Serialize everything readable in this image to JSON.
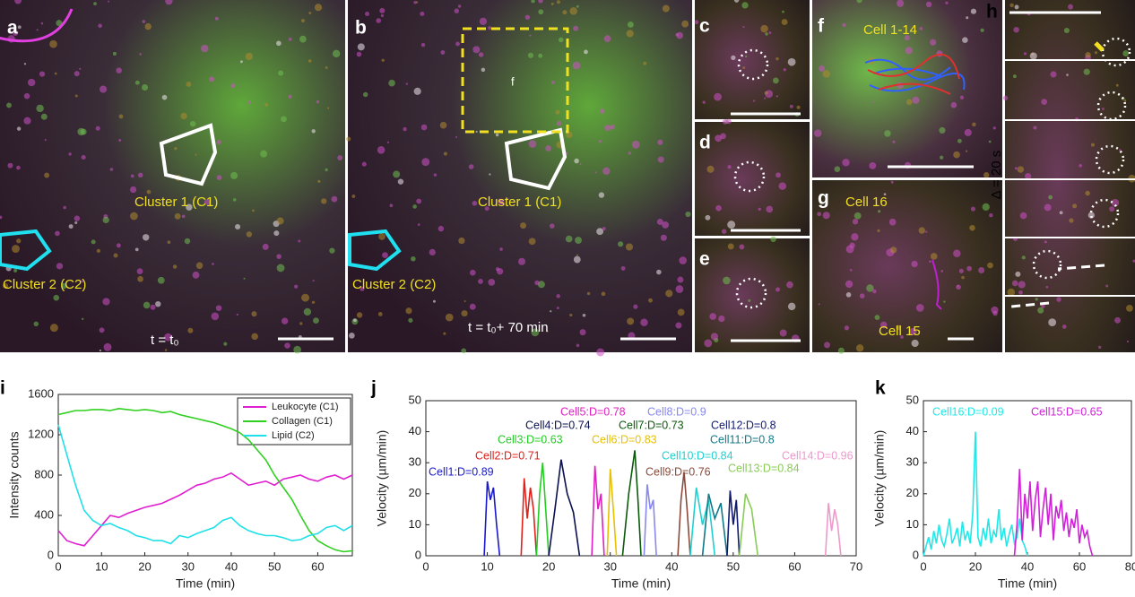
{
  "figure": {
    "panels": [
      {
        "letter": "a"
      },
      {
        "letter": "b"
      },
      {
        "letter": "c"
      },
      {
        "letter": "d"
      },
      {
        "letter": "e"
      },
      {
        "letter": "f"
      },
      {
        "letter": "g"
      },
      {
        "letter": "h"
      }
    ],
    "annotations": [
      "Cluster 1 (C1)",
      "Cluster 2 (C2)",
      "t = t₀",
      "Cluster 1 (C1)",
      "Cluster 2 (C2)",
      "t = t₀+ 70 min",
      "f",
      "Cell 1-14",
      "Cell 16",
      "Cell 15",
      "Δ = 20 s"
    ]
  },
  "chart_data": [
    {
      "type": "line",
      "panel": "i",
      "xlabel": "Time (min)",
      "ylabel": "Intensity counts",
      "xlim": [
        0,
        68
      ],
      "xticks": [
        0,
        10,
        20,
        30,
        40,
        50,
        60
      ],
      "ylim": [
        0,
        1600
      ],
      "yticks": [
        0,
        400,
        800,
        1200,
        1600
      ],
      "legend": "upper right",
      "x": [
        0,
        2,
        4,
        6,
        8,
        10,
        12,
        14,
        16,
        18,
        20,
        22,
        24,
        26,
        28,
        30,
        32,
        34,
        36,
        38,
        40,
        42,
        44,
        46,
        48,
        50,
        52,
        54,
        56,
        58,
        60,
        62,
        64,
        66,
        68
      ],
      "series": [
        {
          "name": "Leukocyte (C1)",
          "color": "#e020d0",
          "values": [
            250,
            150,
            120,
            100,
            200,
            300,
            400,
            380,
            420,
            450,
            480,
            500,
            520,
            560,
            600,
            650,
            700,
            720,
            760,
            780,
            820,
            760,
            700,
            720,
            740,
            700,
            760,
            780,
            800,
            760,
            740,
            780,
            800,
            760,
            800
          ]
        },
        {
          "name": "Collagen (C1)",
          "color": "#30d020",
          "values": [
            1400,
            1420,
            1440,
            1440,
            1450,
            1450,
            1440,
            1460,
            1450,
            1440,
            1450,
            1440,
            1420,
            1430,
            1400,
            1380,
            1360,
            1340,
            1320,
            1290,
            1260,
            1220,
            1150,
            1050,
            950,
            800,
            680,
            560,
            400,
            250,
            150,
            100,
            60,
            40,
            50
          ]
        },
        {
          "name": "Lipid (C2)",
          "color": "#20e0e8",
          "values": [
            1300,
            1000,
            700,
            450,
            350,
            300,
            320,
            280,
            250,
            200,
            180,
            150,
            150,
            120,
            200,
            180,
            220,
            250,
            280,
            350,
            380,
            300,
            250,
            220,
            200,
            200,
            180,
            150,
            160,
            200,
            220,
            280,
            300,
            250,
            300
          ]
        }
      ]
    },
    {
      "type": "line",
      "panel": "j",
      "xlabel": "Time (min)",
      "ylabel": "Velocity (µm/min)",
      "xlim": [
        0,
        70
      ],
      "xticks": [
        0,
        10,
        20,
        30,
        40,
        50,
        60,
        70
      ],
      "ylim": [
        0,
        50
      ],
      "yticks": [
        0,
        10,
        20,
        30,
        40,
        50
      ],
      "series": [
        {
          "name": "Cell1:D=0.89",
          "color": "#1a1acc",
          "x": [
            9.5,
            10,
            10.5,
            11,
            11.5,
            12
          ],
          "values": [
            0,
            24,
            18,
            22,
            10,
            0
          ]
        },
        {
          "name": "Cell2:D=0.71",
          "color": "#e0201a",
          "x": [
            15.5,
            16,
            16.5,
            17,
            17.5,
            18
          ],
          "values": [
            0,
            25,
            12,
            22,
            15,
            0
          ]
        },
        {
          "name": "Cell3:D=0.63",
          "color": "#22cc22",
          "x": [
            18,
            18.5,
            19,
            19.5,
            20
          ],
          "values": [
            0,
            20,
            30,
            15,
            0
          ]
        },
        {
          "name": "Cell4:D=0.74",
          "color": "#0a1050",
          "x": [
            20,
            21,
            22,
            23,
            24,
            25
          ],
          "values": [
            0,
            15,
            31,
            20,
            14,
            0
          ]
        },
        {
          "name": "Cell5:D=0.78",
          "color": "#e020c0",
          "x": [
            27,
            27.5,
            28,
            28.5,
            29
          ],
          "values": [
            0,
            29,
            15,
            20,
            0
          ]
        },
        {
          "name": "Cell6:D=0.83",
          "color": "#e8c000",
          "x": [
            29.5,
            30,
            30.5,
            31
          ],
          "values": [
            0,
            28,
            15,
            0
          ]
        },
        {
          "name": "Cell7:D=0.73",
          "color": "#0a5a0a",
          "x": [
            32,
            33,
            34,
            34.5,
            35
          ],
          "values": [
            0,
            20,
            34,
            18,
            0
          ]
        },
        {
          "name": "Cell8:D=0.9",
          "color": "#8888ee",
          "x": [
            35.5,
            36,
            36.5,
            37,
            37.5
          ],
          "values": [
            0,
            23,
            15,
            18,
            0
          ]
        },
        {
          "name": "Cell9:D=0.76",
          "color": "#8b4a3a",
          "x": [
            41,
            41.5,
            42,
            42.5,
            43
          ],
          "values": [
            0,
            18,
            27,
            15,
            0
          ]
        },
        {
          "name": "Cell10:D=0.84",
          "color": "#20d0d0",
          "x": [
            43,
            44,
            45,
            46,
            47
          ],
          "values": [
            0,
            22,
            10,
            18,
            0
          ]
        },
        {
          "name": "Cell11:D=0.8",
          "color": "#107a8a",
          "x": [
            45,
            46,
            47,
            48,
            49
          ],
          "values": [
            0,
            20,
            12,
            17,
            0
          ]
        },
        {
          "name": "Cell12:D=0.8",
          "color": "#101a70",
          "x": [
            49,
            49.5,
            50,
            50.5,
            51
          ],
          "values": [
            0,
            21,
            10,
            18,
            0
          ]
        },
        {
          "name": "Cell13:D=0.84",
          "color": "#88cc55",
          "x": [
            51,
            52,
            53,
            54
          ],
          "values": [
            0,
            20,
            15,
            0
          ]
        },
        {
          "name": "Cell14:D=0.96",
          "color": "#ee99cc",
          "x": [
            65,
            65.5,
            66,
            66.5,
            67,
            67.5
          ],
          "values": [
            0,
            17,
            8,
            15,
            10,
            0
          ]
        }
      ]
    },
    {
      "type": "line",
      "panel": "k",
      "xlabel": "Time (min)",
      "ylabel": "Velocity (µm/min)",
      "xlim": [
        0,
        80
      ],
      "xticks": [
        0,
        20,
        40,
        60,
        80
      ],
      "ylim": [
        0,
        50
      ],
      "yticks": [
        0,
        10,
        20,
        30,
        40,
        50
      ],
      "series": [
        {
          "name": "Cell16:D=0.09",
          "color": "#20e8e8",
          "x": [
            0,
            1,
            2,
            3,
            4,
            5,
            6,
            7,
            8,
            9,
            10,
            11,
            12,
            13,
            14,
            15,
            16,
            17,
            18,
            19,
            20,
            21,
            22,
            23,
            24,
            25,
            26,
            27,
            28,
            29,
            30,
            31,
            32,
            33,
            34,
            35,
            36,
            37,
            38,
            39,
            40
          ],
          "values": [
            0,
            3,
            6,
            2,
            8,
            4,
            10,
            5,
            3,
            7,
            12,
            4,
            6,
            9,
            3,
            11,
            5,
            8,
            4,
            14,
            40,
            6,
            3,
            9,
            5,
            12,
            4,
            8,
            6,
            15,
            5,
            9,
            3,
            7,
            10,
            4,
            6,
            12,
            5,
            3,
            0
          ]
        },
        {
          "name": "Cell15:D=0.65",
          "color": "#d020d8",
          "x": [
            35,
            36,
            37,
            38,
            39,
            40,
            41,
            42,
            43,
            44,
            45,
            46,
            47,
            48,
            49,
            50,
            51,
            52,
            53,
            54,
            55,
            56,
            57,
            58,
            59,
            60,
            61,
            62,
            63,
            64,
            65
          ],
          "values": [
            0,
            10,
            28,
            5,
            20,
            12,
            24,
            8,
            18,
            24,
            6,
            15,
            22,
            10,
            20,
            5,
            16,
            12,
            18,
            8,
            14,
            6,
            12,
            9,
            15,
            4,
            10,
            6,
            8,
            3,
            0
          ]
        }
      ]
    }
  ]
}
